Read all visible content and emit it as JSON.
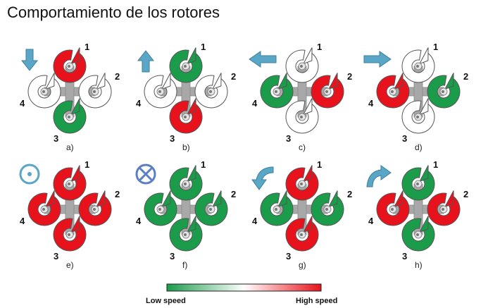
{
  "title": "Comportamiento de los rotores",
  "colors": {
    "high": "#e8121c",
    "low": "#1a9c4a",
    "off": "#ffffff",
    "arrow": "#5aa6c6",
    "frame": "#a8a8a8"
  },
  "rotor_labels": [
    "1",
    "2",
    "3",
    "4"
  ],
  "panels": [
    {
      "caption": "a)",
      "speeds": [
        "high",
        "off",
        "low",
        "off"
      ],
      "indicator": "arrow-down"
    },
    {
      "caption": "b)",
      "speeds": [
        "low",
        "off",
        "high",
        "off"
      ],
      "indicator": "arrow-up"
    },
    {
      "caption": "c)",
      "speeds": [
        "off",
        "high",
        "off",
        "low"
      ],
      "indicator": "arrow-left"
    },
    {
      "caption": "d)",
      "speeds": [
        "off",
        "low",
        "off",
        "high"
      ],
      "indicator": "arrow-right"
    },
    {
      "caption": "e)",
      "speeds": [
        "high",
        "high",
        "high",
        "high"
      ],
      "indicator": "dot-circle"
    },
    {
      "caption": "f)",
      "speeds": [
        "low",
        "low",
        "low",
        "low"
      ],
      "indicator": "cross-circle"
    },
    {
      "caption": "g)",
      "speeds": [
        "high",
        "low",
        "high",
        "low"
      ],
      "indicator": "curved-arrow-ccw"
    },
    {
      "caption": "h)",
      "speeds": [
        "low",
        "high",
        "low",
        "high"
      ],
      "indicator": "curved-arrow-cw"
    }
  ],
  "legend": {
    "low_label": "Low speed",
    "high_label": "High speed"
  }
}
